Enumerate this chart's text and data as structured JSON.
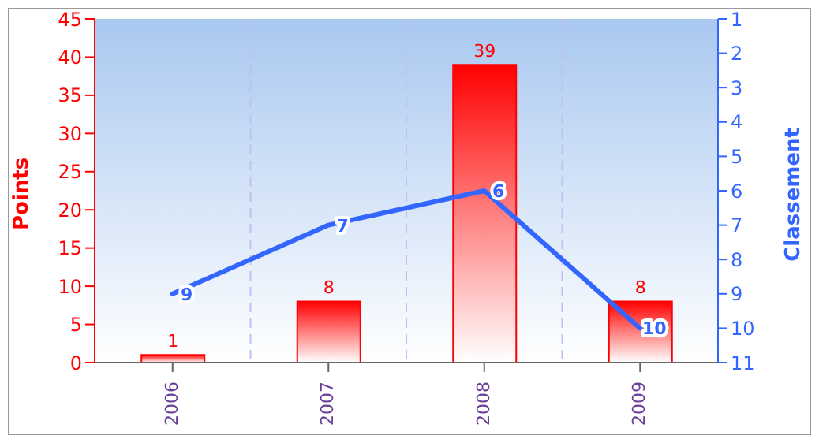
{
  "chart_data": {
    "type": "bar",
    "categories": [
      "2006",
      "2007",
      "2008",
      "2009"
    ],
    "series": [
      {
        "color": "#ff0000",
        "values": [
          1,
          8,
          39,
          8
        ]
      },
      {
        "type": "line",
        "axis": "y2",
        "color": "#3366ff",
        "values": [
          9,
          7,
          6,
          10
        ]
      }
    ],
    "ylabel": "Points",
    "y2label": "Classement",
    "ylim": [
      0,
      45
    ],
    "yticks": [
      0,
      5,
      10,
      15,
      20,
      25,
      30,
      35,
      40,
      45
    ],
    "y2lim": [
      11,
      1
    ],
    "y2ticks": [
      1,
      2,
      3,
      4,
      5,
      6,
      7,
      8,
      9,
      10,
      11
    ],
    "grid": "x",
    "data_labels": true,
    "marker": "none",
    "line_style": "solid",
    "legend": false
  }
}
